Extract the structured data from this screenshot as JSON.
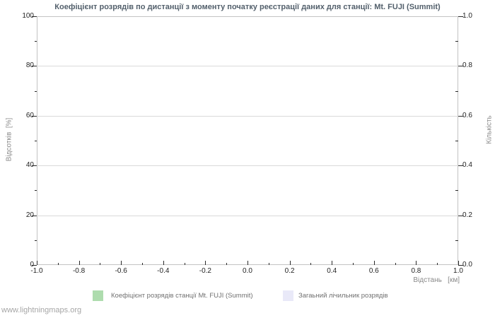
{
  "page": {
    "watermark": "www.lightningmaps.org"
  },
  "chart": {
    "title": "Коефіцієнт розрядів по дистанції з моменту початку реєстрації даних для станції: Mt. FUJI (Summit)",
    "axes": {
      "left": {
        "label": "Відсотків  [%]",
        "ticks": [
          "0",
          "20",
          "40",
          "60",
          "80",
          "100"
        ]
      },
      "right": {
        "label": "Кількість",
        "ticks": [
          "0.0",
          "0.2",
          "0.4",
          "0.6",
          "0.8",
          "1.0"
        ]
      },
      "bottom": {
        "label": "Відстань   [км]",
        "ticks": [
          "-1.0",
          "-0.8",
          "-0.6",
          "-0.4",
          "-0.2",
          "0.0",
          "0.2",
          "0.4",
          "0.6",
          "0.8",
          "1.0"
        ]
      }
    },
    "legend": [
      {
        "label": "Коефіцієнт розрядів станції Mt. FUJI (Summit)",
        "color": "#aedcae"
      },
      {
        "label": "Загаьний лічильник розрядів",
        "color": "#e9e9f8"
      }
    ],
    "colors": {
      "title": "#525f6b",
      "tick_label": "#1f1f1f",
      "axis_name": "#8a8a8a",
      "frame": "#c3c3c3",
      "gridline": "#dadada",
      "legend_text": "#707070",
      "watermark": "#a6a6a6"
    }
  },
  "chart_data": {
    "type": "bar",
    "title": "Коефіцієнт розрядів по дистанції з моменту початку реєстрації даних для станції: Mt. FUJI (Summit)",
    "xlabel": "Відстань [км]",
    "ylabel_left": "Відсотків [%]",
    "ylabel_right": "Кількість",
    "xlim": [
      -1.0,
      1.0
    ],
    "x_tick_step": 0.2,
    "ylim_left": [
      0,
      100
    ],
    "ylim_right": [
      0.0,
      1.0
    ],
    "grid": "horizontal-only",
    "legend_position": "bottom",
    "series": [
      {
        "name": "Коефіцієнт розрядів станції Mt. FUJI (Summit)",
        "axis": "left",
        "color": "#aedcae",
        "x": [],
        "values": []
      },
      {
        "name": "Загаьний лічильник розрядів",
        "axis": "right",
        "color": "#e9e9f8",
        "x": [],
        "values": []
      }
    ]
  }
}
